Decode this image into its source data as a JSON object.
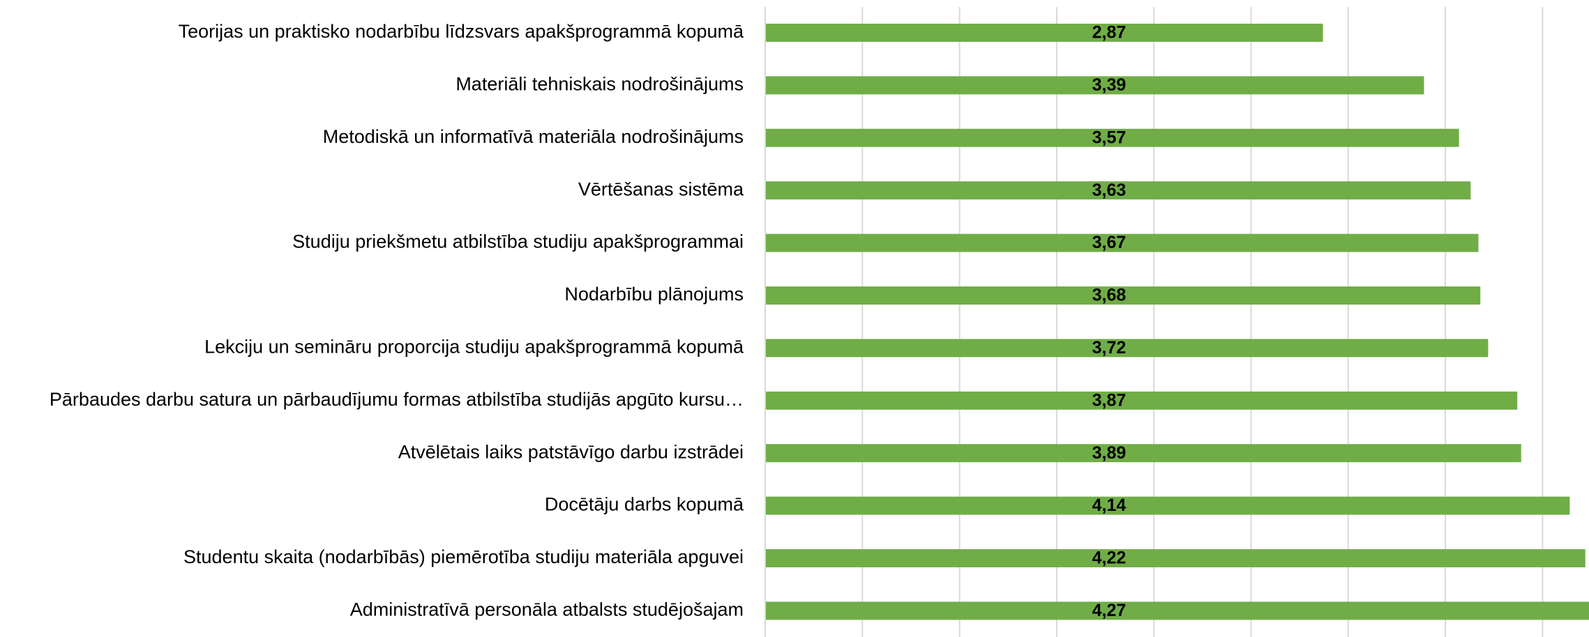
{
  "chart_data": {
    "type": "barh",
    "categories": [
      "Teorijas un praktisko nodarbību līdzsvars apakšprogrammā kopumā",
      "Materiāli tehniskais nodrošinājums",
      "Metodiskā un informatīvā materiāla nodrošinājums",
      "Vērtēšanas sistēma",
      "Studiju priekšmetu atbilstība studiju apakšprogrammai",
      "Nodarbību plānojums",
      "Lekciju un semināru proporcija studiju apakšprogrammā kopumā",
      "Pārbaudes darbu satura un pārbaudījumu formas atbilstība studijās apgūto kursu…",
      "Atvēlētais laiks patstāvīgo darbu izstrādei",
      "Docētāju darbs kopumā",
      "Studentu skaita (nodarbībās) piemērotība studiju materiāla apguvei",
      "Administratīvā personāla atbalsts studējošajam"
    ],
    "values": [
      2.87,
      3.39,
      3.57,
      3.63,
      3.67,
      3.68,
      3.72,
      3.87,
      3.89,
      4.14,
      4.22,
      4.27
    ],
    "value_labels": [
      "2,87",
      "3,39",
      "3,57",
      "3,63",
      "3,67",
      "3,68",
      "3,72",
      "3,87",
      "3,89",
      "4,14",
      "4,22",
      "4,27"
    ],
    "color": "#70ad47",
    "xlim": [
      0,
      4.5
    ],
    "xticks": [
      0,
      0.5,
      1,
      1.5,
      2,
      2.5,
      3,
      3.5,
      4,
      4.5
    ],
    "grid": true
  }
}
